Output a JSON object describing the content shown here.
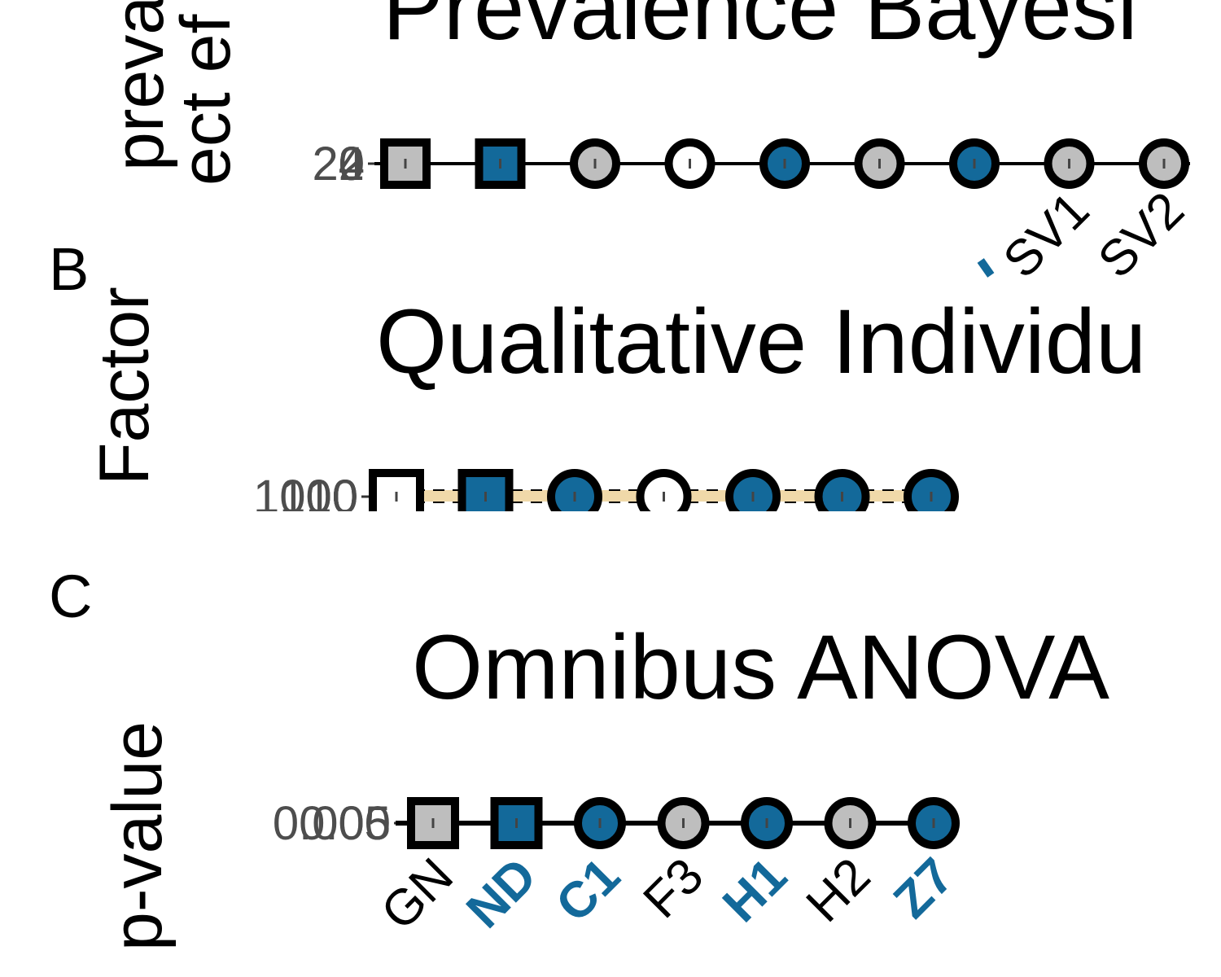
{
  "colors": {
    "blue": "#13699a",
    "gray": "#bebebe",
    "white": "#ffffff",
    "black": "#000000",
    "tick_text": "#4d4d4d",
    "band": "#f0d9a9"
  },
  "chart_data": [
    {
      "panel": "",
      "type": "scatter",
      "title": "Prevalence Bayesi",
      "ylabel_lines": [
        "preva",
        "ect ef"
      ],
      "y_tick_labels": [
        "0",
        "2",
        "4",
        "20"
      ],
      "x_tick_labels": [
        "",
        "",
        "",
        "",
        "",
        "",
        "",
        "SV1",
        "SV2"
      ],
      "points": [
        {
          "shape": "square",
          "fill": "gray",
          "value": 0
        },
        {
          "shape": "square",
          "fill": "blue",
          "value": 0
        },
        {
          "shape": "circle",
          "fill": "gray",
          "value": 0
        },
        {
          "shape": "circle",
          "fill": "white",
          "value": 0
        },
        {
          "shape": "circle",
          "fill": "blue",
          "value": 0
        },
        {
          "shape": "circle",
          "fill": "gray",
          "value": 0
        },
        {
          "shape": "circle",
          "fill": "blue",
          "value": 0
        },
        {
          "shape": "circle",
          "fill": "gray",
          "value": 0
        },
        {
          "shape": "circle",
          "fill": "gray",
          "value": 0
        }
      ]
    },
    {
      "panel": "B",
      "type": "scatter",
      "title": "Qualitative Individu",
      "ylabel_lines": [
        "Factor"
      ],
      "y_tick_labels": [
        "0",
        "10",
        "100",
        "1000"
      ],
      "points": [
        {
          "shape": "square",
          "fill": "white",
          "value": 0
        },
        {
          "shape": "square",
          "fill": "blue",
          "value": 0
        },
        {
          "shape": "circle",
          "fill": "blue",
          "value": 0
        },
        {
          "shape": "circle",
          "fill": "white",
          "value": 0
        },
        {
          "shape": "circle",
          "fill": "blue",
          "value": 0
        },
        {
          "shape": "circle",
          "fill": "blue",
          "value": 0
        },
        {
          "shape": "circle",
          "fill": "blue",
          "value": 0
        }
      ]
    },
    {
      "panel": "C",
      "type": "scatter",
      "title": "Omnibus ANOVA",
      "ylabel_lines": [
        "p-value"
      ],
      "y_tick_labels": [
        "0",
        "0.005",
        "0.05"
      ],
      "x_tick_labels": [
        "GN",
        "ND",
        "C1",
        "F3",
        "H1",
        "H2",
        "Z7"
      ],
      "x_tick_highlight": [
        false,
        true,
        true,
        false,
        true,
        false,
        true
      ],
      "points": [
        {
          "shape": "square",
          "fill": "gray",
          "value": 0
        },
        {
          "shape": "square",
          "fill": "blue",
          "value": 0
        },
        {
          "shape": "circle",
          "fill": "blue",
          "value": 0
        },
        {
          "shape": "circle",
          "fill": "gray",
          "value": 0
        },
        {
          "shape": "circle",
          "fill": "blue",
          "value": 0
        },
        {
          "shape": "circle",
          "fill": "gray",
          "value": 0
        },
        {
          "shape": "circle",
          "fill": "blue",
          "value": 0
        }
      ]
    }
  ]
}
